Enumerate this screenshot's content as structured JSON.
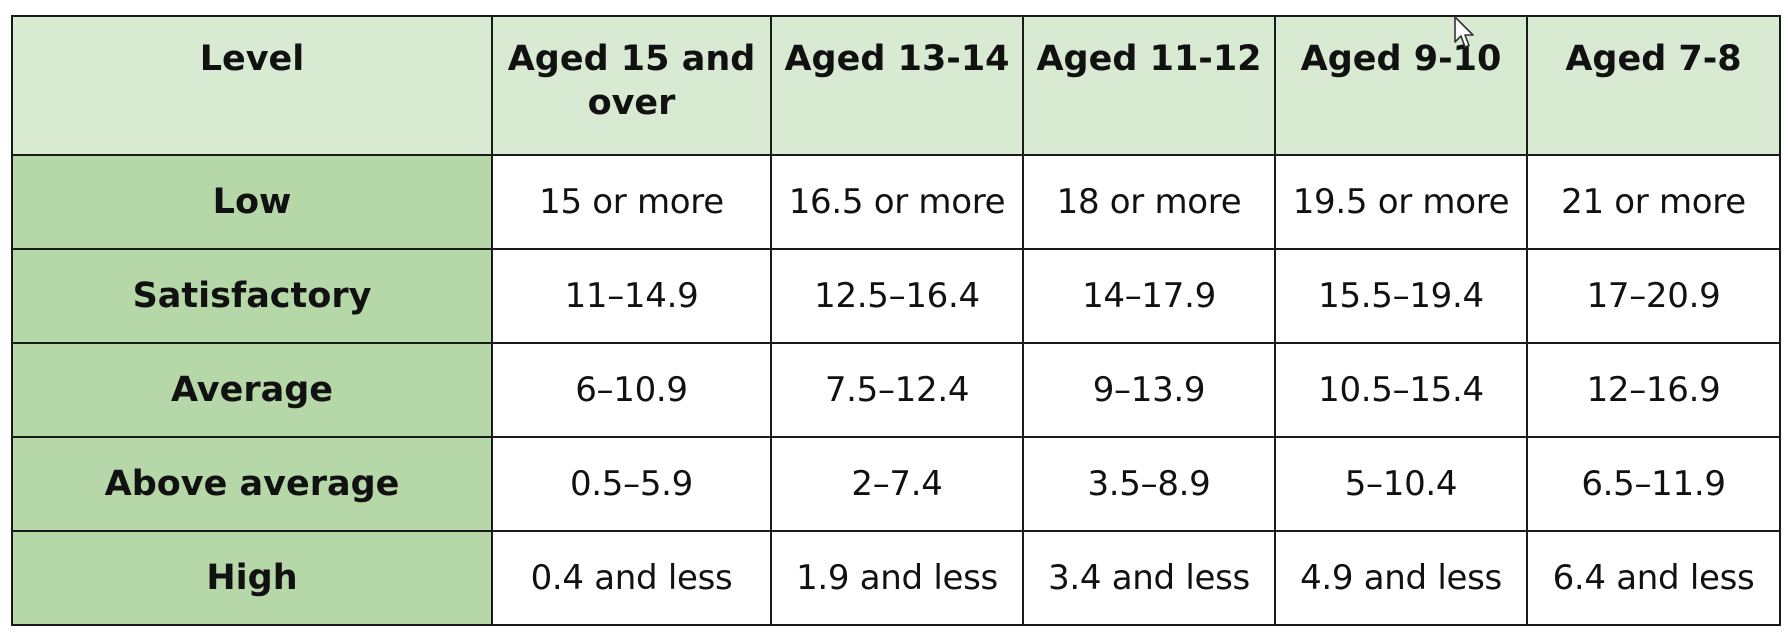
{
  "table": {
    "header": {
      "level": "Level",
      "age_15_over": "Aged 15 and over",
      "age_13_14": "Aged 13-14",
      "age_11_12": "Aged 11-12",
      "age_9_10": "Aged 9-10",
      "age_7_8": "Aged 7-8"
    },
    "rows": [
      {
        "level": "Low",
        "a15": "15 or more",
        "a13": "16.5 or more",
        "a11": "18 or more",
        "a9": "19.5 or more",
        "a7": "21 or more"
      },
      {
        "level": "Satisfactory",
        "a15": "11–14.9",
        "a13": "12.5–16.4",
        "a11": "14–17.9",
        "a9": "15.5–19.4",
        "a7": "17–20.9"
      },
      {
        "level": "Average",
        "a15": "6–10.9",
        "a13": "7.5–12.4",
        "a11": "9–13.9",
        "a9": "10.5–15.4",
        "a7": "12–16.9"
      },
      {
        "level": "Above average",
        "a15": "0.5–5.9",
        "a13": "2–7.4",
        "a11": "3.5–8.9",
        "a9": "5–10.4",
        "a7": "6.5–11.9"
      },
      {
        "level": "High",
        "a15": "0.4 and less",
        "a13": "1.9 and less",
        "a11": "3.4 and less",
        "a9": "4.9 and less",
        "a7": "6.4 and less"
      }
    ]
  },
  "colors": {
    "header_bg": "#d9ead3",
    "level_col_bg": "#b6d7a8",
    "border": "#1a1a1a"
  },
  "icons": {
    "cursor": "mouse-pointer-icon"
  }
}
